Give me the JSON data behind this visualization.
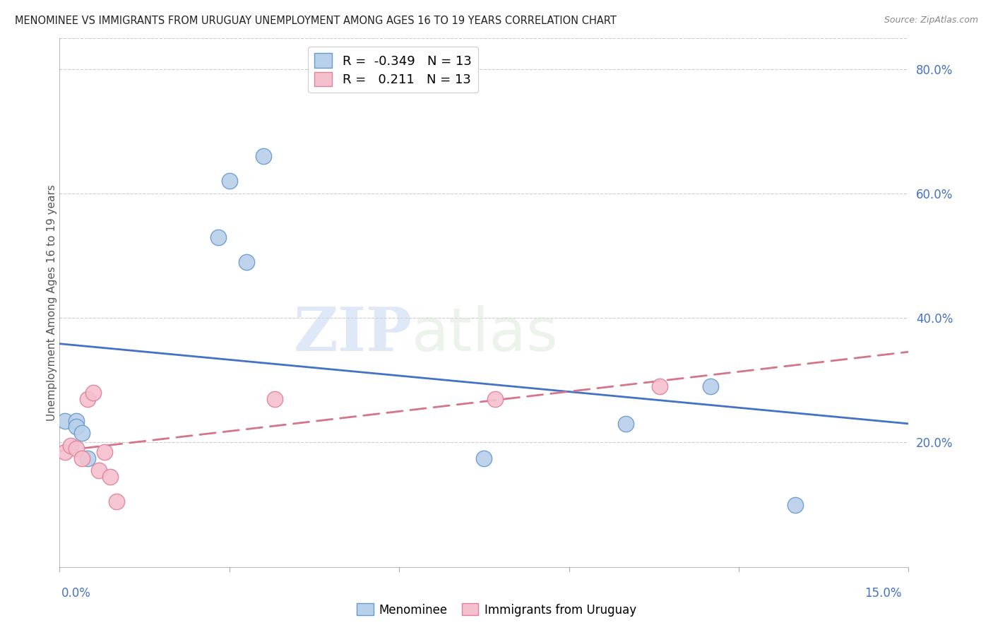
{
  "title": "MENOMINEE VS IMMIGRANTS FROM URUGUAY UNEMPLOYMENT AMONG AGES 16 TO 19 YEARS CORRELATION CHART",
  "source": "Source: ZipAtlas.com",
  "ylabel": "Unemployment Among Ages 16 to 19 years",
  "xmin": 0.0,
  "xmax": 0.15,
  "ymin": 0.0,
  "ymax": 0.85,
  "menominee_r": -0.349,
  "menominee_n": 13,
  "uruguay_r": 0.211,
  "uruguay_n": 13,
  "menominee_color": "#b8d0ea",
  "menominee_edge_color": "#6699cc",
  "uruguay_color": "#f5c0ce",
  "uruguay_edge_color": "#e0809a",
  "trend_menominee_color": "#4472c4",
  "trend_uruguay_color": "#d4758a",
  "menominee_x": [
    0.001,
    0.003,
    0.003,
    0.004,
    0.005,
    0.028,
    0.03,
    0.033,
    0.036,
    0.075,
    0.1,
    0.115,
    0.13
  ],
  "menominee_y": [
    0.235,
    0.235,
    0.225,
    0.215,
    0.175,
    0.53,
    0.62,
    0.49,
    0.66,
    0.175,
    0.23,
    0.29,
    0.1
  ],
  "uruguay_x": [
    0.001,
    0.002,
    0.003,
    0.004,
    0.005,
    0.006,
    0.007,
    0.008,
    0.009,
    0.01,
    0.038,
    0.077,
    0.106
  ],
  "uruguay_y": [
    0.185,
    0.195,
    0.19,
    0.175,
    0.27,
    0.28,
    0.155,
    0.185,
    0.145,
    0.105,
    0.27,
    0.27,
    0.29
  ],
  "watermark_zip": "ZIP",
  "watermark_atlas": "atlas",
  "right_yticks": [
    0.2,
    0.4,
    0.6,
    0.8
  ],
  "right_ylabels": [
    "20.0%",
    "40.0%",
    "60.0%",
    "80.0%"
  ]
}
